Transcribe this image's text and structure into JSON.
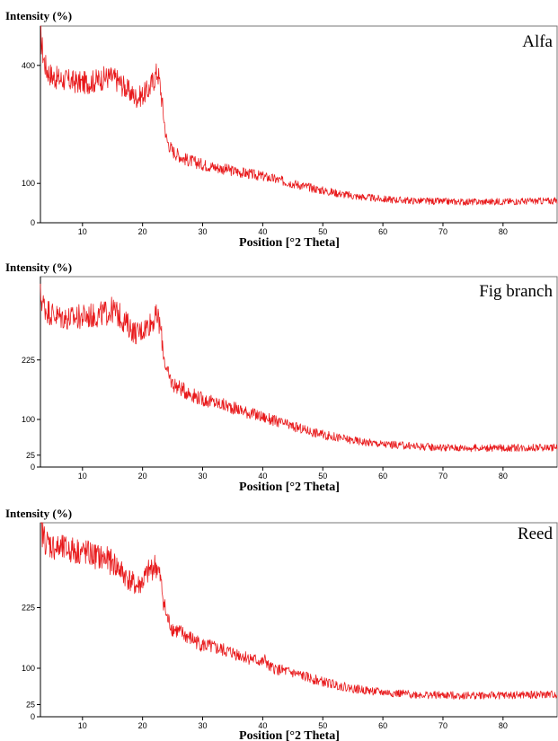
{
  "chart_data": [
    {
      "type": "line",
      "title": "Alfa",
      "ylabel": "Intensity (%)",
      "xlabel": "Position [°2 Theta]",
      "xlim": [
        3,
        89
      ],
      "ylim": [
        0,
        500
      ],
      "x_ticks": [
        10,
        20,
        30,
        40,
        50,
        60,
        70,
        80
      ],
      "y_ticks": [
        {
          "value": 0,
          "label": "0"
        },
        {
          "value": 100,
          "label": "100"
        },
        {
          "value": 400,
          "label": "400"
        }
      ],
      "grid": false,
      "color": "#e8191b",
      "series": [
        {
          "x": [
            3,
            3.5,
            4,
            5,
            6,
            8,
            10,
            12,
            14,
            15,
            16,
            17,
            18,
            19,
            20,
            21,
            22,
            22.5,
            23,
            23.5,
            24,
            25,
            27,
            30,
            35,
            40,
            45,
            50,
            55,
            60,
            65,
            70,
            75,
            80,
            85,
            89
          ],
          "y": [
            480,
            420,
            390,
            372,
            366,
            360,
            355,
            360,
            370,
            368,
            360,
            345,
            330,
            318,
            325,
            338,
            368,
            386,
            340,
            272,
            210,
            182,
            162,
            148,
            132,
            118,
            100,
            82,
            68,
            60,
            56,
            54,
            53,
            54,
            55,
            56
          ]
        }
      ]
    },
    {
      "type": "line",
      "title": "Fig branch",
      "ylabel": "Intensity (%)",
      "xlabel": "Position [°2 Theta]",
      "xlim": [
        3,
        89
      ],
      "ylim": [
        0,
        400
      ],
      "x_ticks": [
        10,
        20,
        30,
        40,
        50,
        60,
        70,
        80
      ],
      "y_ticks": [
        {
          "value": 0,
          "label": "0"
        },
        {
          "value": 25,
          "label": "25"
        },
        {
          "value": 100,
          "label": "100"
        },
        {
          "value": 225,
          "label": "225"
        }
      ],
      "grid": false,
      "color": "#e8191b",
      "series": [
        {
          "x": [
            3,
            3.5,
            4,
            5,
            6,
            8,
            10,
            12,
            14,
            15,
            16,
            17,
            18,
            19,
            20,
            21,
            22,
            22.5,
            23,
            23.5,
            24,
            25,
            27,
            30,
            35,
            40,
            45,
            50,
            55,
            60,
            65,
            70,
            75,
            80,
            85,
            89
          ],
          "y": [
            360,
            342,
            330,
            322,
            316,
            312,
            316,
            318,
            324,
            330,
            320,
            306,
            292,
            280,
            288,
            300,
            312,
            316,
            290,
            240,
            200,
            175,
            160,
            142,
            125,
            105,
            85,
            68,
            56,
            48,
            44,
            41,
            40,
            40,
            41,
            41
          ]
        }
      ]
    },
    {
      "type": "line",
      "title": "Reed",
      "ylabel": "Intensity (%)",
      "xlabel": "Position [°2 Theta]",
      "xlim": [
        3,
        89
      ],
      "ylim": [
        0,
        400
      ],
      "x_ticks": [
        10,
        20,
        30,
        40,
        50,
        60,
        70,
        80
      ],
      "y_ticks": [
        {
          "value": 0,
          "label": "0"
        },
        {
          "value": 25,
          "label": "25"
        },
        {
          "value": 100,
          "label": "100"
        },
        {
          "value": 225,
          "label": "225"
        }
      ],
      "grid": false,
      "color": "#e8191b",
      "series": [
        {
          "x": [
            3,
            3.5,
            4,
            5,
            6,
            8,
            10,
            12,
            14,
            15,
            16,
            17,
            18,
            19,
            20,
            21,
            22,
            22.5,
            23,
            23.5,
            24,
            25,
            27,
            28.5,
            30,
            35,
            40,
            40.5,
            41,
            45,
            50,
            55,
            60,
            65,
            70,
            75,
            80,
            85,
            89
          ],
          "y": [
            390,
            372,
            360,
            352,
            346,
            344,
            340,
            332,
            324,
            318,
            306,
            292,
            280,
            268,
            278,
            298,
            312,
            306,
            280,
            240,
            205,
            182,
            168,
            158,
            148,
            132,
            112,
            118,
            102,
            90,
            72,
            58,
            50,
            46,
            44,
            44,
            44,
            45,
            46
          ]
        }
      ]
    }
  ]
}
